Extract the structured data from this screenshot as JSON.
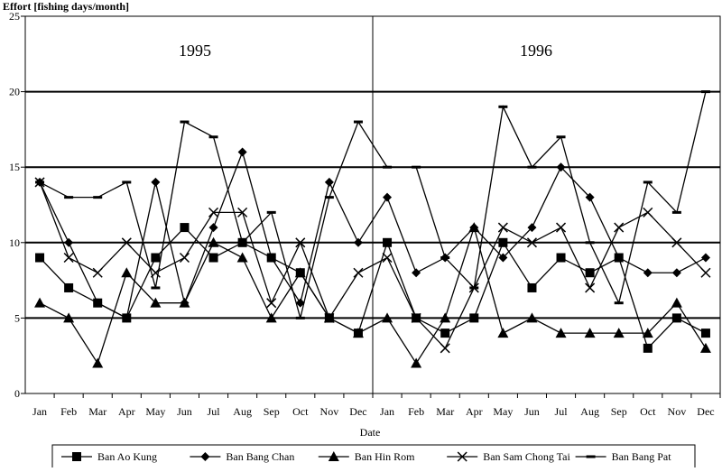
{
  "chart_data": {
    "type": "line",
    "ylabel": "Effort [fishing days/month]",
    "xlabel": "Date",
    "ylim": [
      0,
      25
    ],
    "yticks": [
      0,
      5,
      10,
      15,
      20,
      25
    ],
    "grid": "horizontal",
    "legend_position": "bottom",
    "year_labels": [
      "1995",
      "1996"
    ],
    "categories": [
      "Jan",
      "Feb",
      "Mar",
      "Apr",
      "May",
      "Jun",
      "Jul",
      "Aug",
      "Sep",
      "Oct",
      "Nov",
      "Dec",
      "Jan",
      "Feb",
      "Mar",
      "Apr",
      "May",
      "Jun",
      "Jul",
      "Aug",
      "Sep",
      "Oct",
      "Nov",
      "Dec"
    ],
    "series": [
      {
        "name": "Ban Ao Kung",
        "marker": "square",
        "values": [
          9,
          7,
          6,
          5,
          9,
          11,
          9,
          10,
          9,
          8,
          5,
          4,
          10,
          5,
          4,
          5,
          10,
          7,
          9,
          8,
          9,
          3,
          5,
          4
        ]
      },
      {
        "name": "Ban Bang Chan",
        "marker": "diamond",
        "values": [
          14,
          10,
          6,
          5,
          14,
          6,
          11,
          16,
          9,
          6,
          14,
          10,
          13,
          8,
          9,
          11,
          9,
          11,
          15,
          13,
          9,
          8,
          8,
          9
        ]
      },
      {
        "name": "Ban Hin Rom",
        "marker": "triangle",
        "values": [
          6,
          5,
          2,
          8,
          6,
          6,
          10,
          9,
          5,
          8,
          5,
          4,
          5,
          2,
          5,
          11,
          4,
          5,
          4,
          4,
          4,
          4,
          6,
          3
        ]
      },
      {
        "name": "Ban Sam Chong Tai",
        "marker": "x",
        "values": [
          14,
          9,
          8,
          10,
          8,
          9,
          12,
          12,
          6,
          10,
          5,
          8,
          9,
          5,
          3,
          7,
          11,
          10,
          11,
          7,
          11,
          12,
          10,
          8
        ]
      },
      {
        "name": "Ban Bang Pat",
        "marker": "dash",
        "values": [
          14,
          13,
          13,
          14,
          7,
          18,
          17,
          10,
          12,
          5,
          13,
          18,
          15,
          15,
          9,
          7,
          19,
          15,
          17,
          10,
          6,
          14,
          12,
          20
        ]
      }
    ]
  }
}
